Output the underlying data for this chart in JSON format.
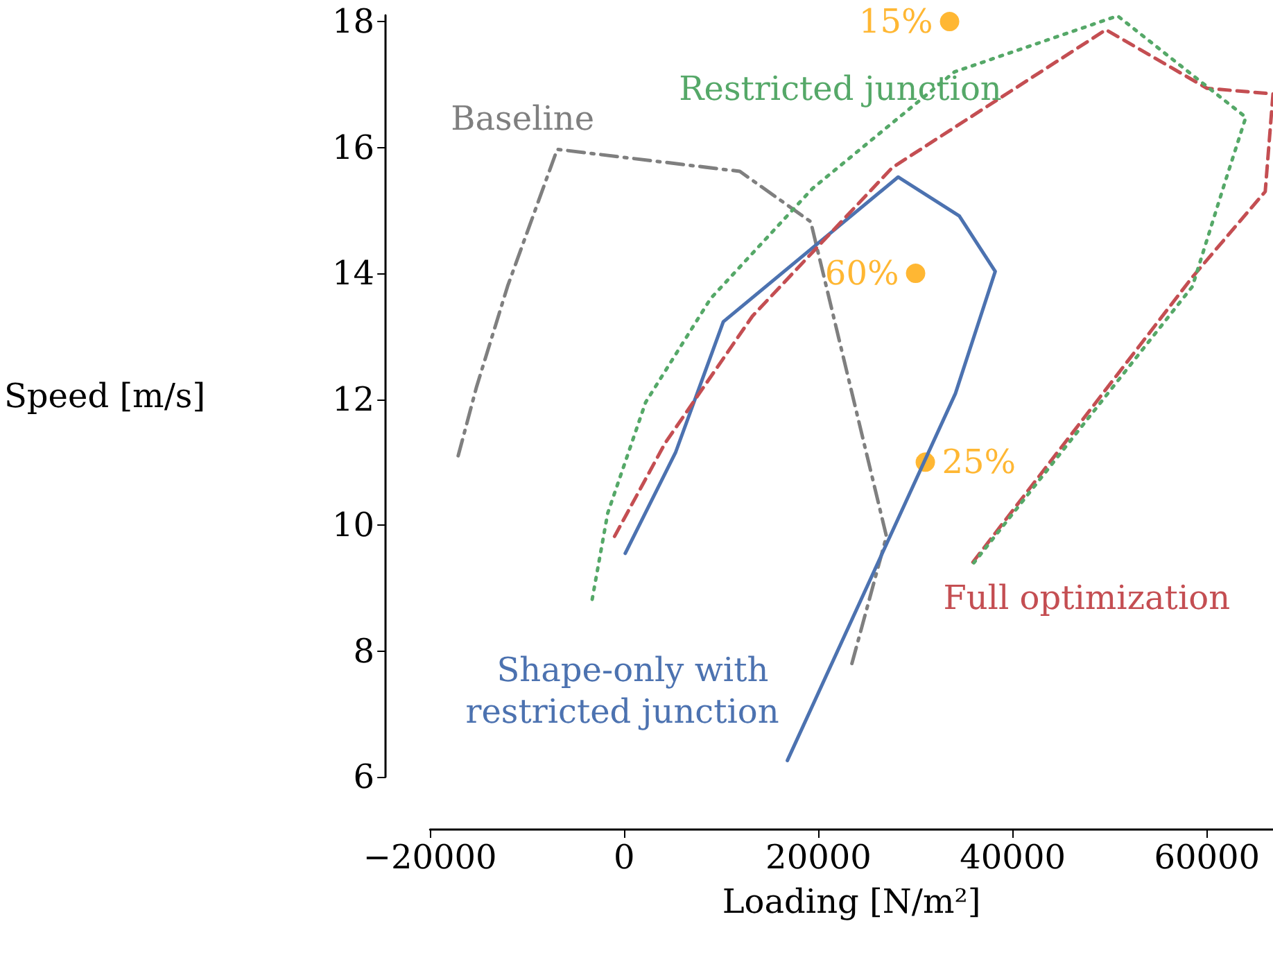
{
  "chart_data": {
    "type": "line",
    "xlabel": "Loading [N/m²]",
    "ylabel": "Speed [m/s]",
    "xlim": [
      -20000,
      66800
    ],
    "ylim": [
      6,
      18.1
    ],
    "xticks": [
      {
        "value": -20000,
        "label": "−20000"
      },
      0,
      20000,
      40000,
      60000
    ],
    "yticks": [
      6,
      8,
      10,
      12,
      14,
      16,
      18
    ],
    "grid": false,
    "legend": false,
    "series": [
      {
        "name": "Baseline",
        "color": "#7f7f7f",
        "line_style": "dashdot",
        "x": [
          -17100,
          -15200,
          -12000,
          -6900,
          11900,
          19200,
          27000,
          23300
        ],
        "values": [
          11.1,
          12.2,
          13.8,
          15.97,
          15.62,
          14.82,
          9.82,
          7.72
        ]
      },
      {
        "name": "Shape-only with restricted junction",
        "color": "#4c72b0",
        "line_style": "solid",
        "x": [
          100,
          5300,
          10200,
          28200,
          34500,
          38200,
          34100,
          16800
        ],
        "values": [
          9.55,
          11.16,
          13.23,
          15.53,
          14.91,
          14.03,
          12.09,
          6.26
        ]
      },
      {
        "name": "Full optimization",
        "color": "#c44e52",
        "line_style": "dashed",
        "x": [
          -1000,
          4200,
          13200,
          27600,
          49600,
          60000,
          66800,
          66000,
          58500,
          35700
        ],
        "values": [
          9.82,
          11.3,
          13.32,
          15.68,
          17.87,
          16.94,
          16.85,
          15.3,
          13.94,
          9.37
        ]
      },
      {
        "name": "Restricted junction",
        "color": "#55a868",
        "line_style": "dotted",
        "x": [
          -3300,
          -1700,
          2200,
          8900,
          19400,
          34000,
          50800,
          64000,
          61800,
          58500,
          36000
        ],
        "values": [
          8.82,
          10.19,
          11.95,
          13.6,
          15.35,
          17.2,
          18.09,
          16.48,
          15.42,
          13.79,
          9.4
        ]
      },
      {
        "type": "scatter",
        "color": "#ffa500",
        "marker": "circle",
        "x": [
          33500,
          30000,
          31000
        ],
        "values": [
          18,
          14,
          11
        ]
      }
    ],
    "annotations": [
      {
        "text": "15%",
        "x": 33500,
        "y": 18
      },
      {
        "text": "60%",
        "x": 30000,
        "y": 14
      },
      {
        "text": "25%",
        "x": 31000,
        "y": 11
      }
    ]
  }
}
